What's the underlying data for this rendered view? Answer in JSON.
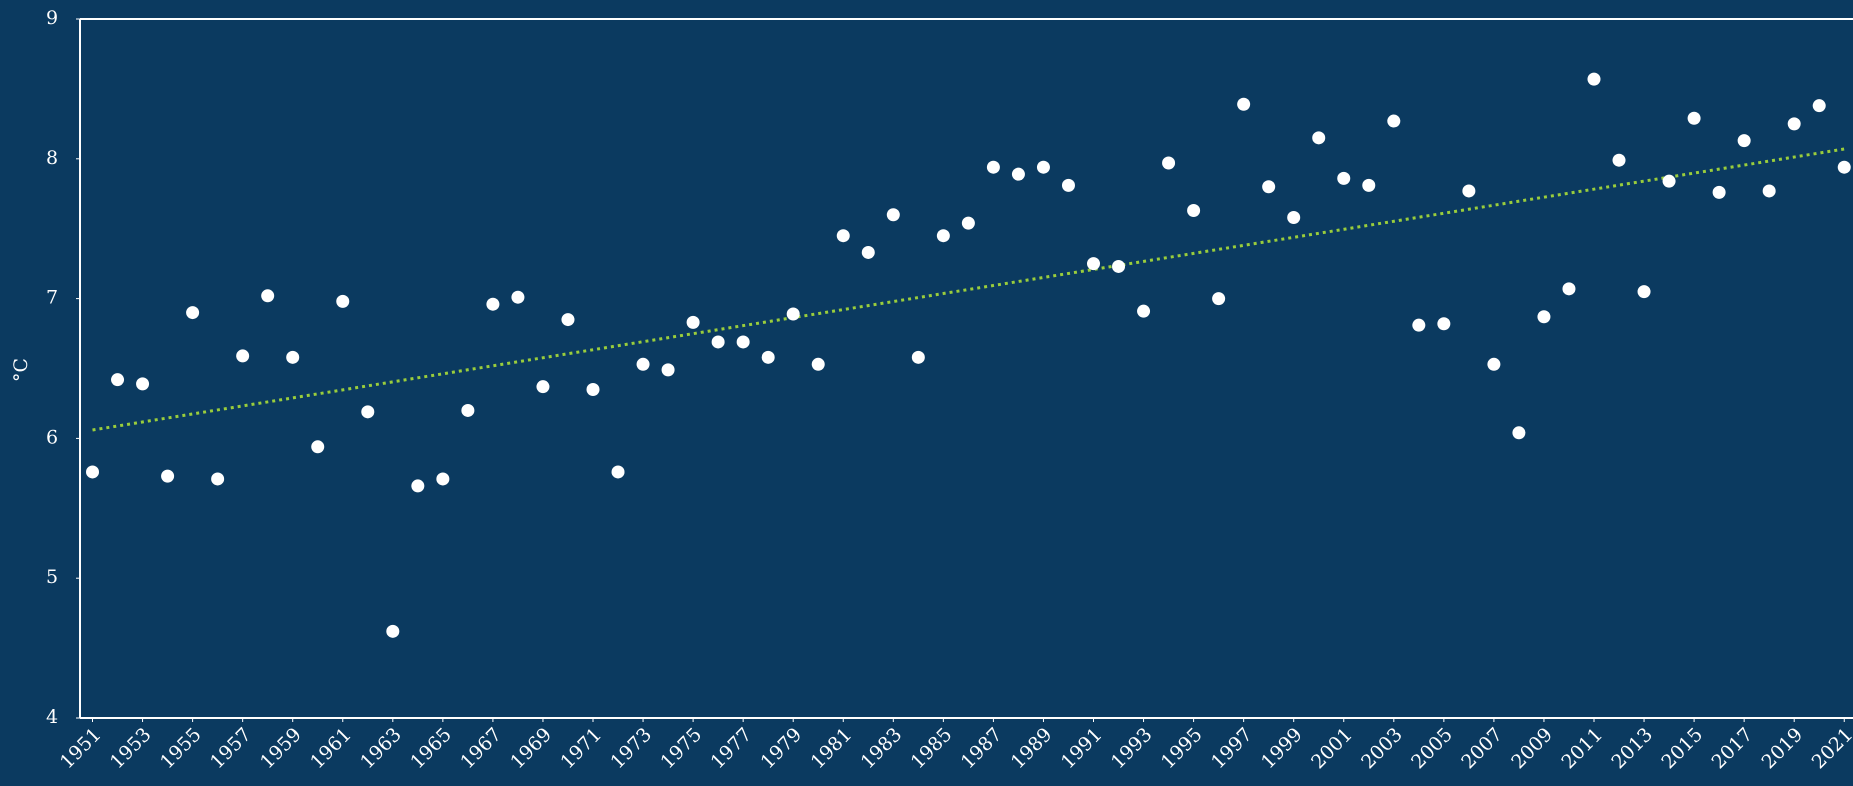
{
  "chart_data": {
    "type": "scatter",
    "ylabel": "°C",
    "x": [
      1951,
      1952,
      1953,
      1954,
      1955,
      1956,
      1957,
      1958,
      1959,
      1960,
      1961,
      1962,
      1963,
      1964,
      1965,
      1966,
      1967,
      1968,
      1969,
      1970,
      1971,
      1972,
      1973,
      1974,
      1975,
      1976,
      1977,
      1978,
      1979,
      1980,
      1981,
      1982,
      1983,
      1984,
      1985,
      1986,
      1987,
      1988,
      1989,
      1990,
      1991,
      1992,
      1993,
      1994,
      1995,
      1996,
      1997,
      1998,
      1999,
      2000,
      2001,
      2002,
      2003,
      2004,
      2005,
      2006,
      2007,
      2008,
      2009,
      2010,
      2011,
      2012,
      2013,
      2014,
      2015,
      2016,
      2017,
      2018,
      2019,
      2020,
      2021
    ],
    "series": [
      {
        "color": "#ffffff",
        "values": [
          5.76,
          6.42,
          6.39,
          5.73,
          6.9,
          5.71,
          6.59,
          7.02,
          6.58,
          5.94,
          6.98,
          6.19,
          4.62,
          5.66,
          5.71,
          6.2,
          6.96,
          7.01,
          6.37,
          6.85,
          6.35,
          5.76,
          6.53,
          6.49,
          6.83,
          6.69,
          6.69,
          6.58,
          6.89,
          6.53,
          7.45,
          7.33,
          7.6,
          6.58,
          7.45,
          7.54,
          7.94,
          7.89,
          7.94,
          7.81,
          7.25,
          7.23,
          6.91,
          7.97,
          7.63,
          7.0,
          8.39,
          7.8,
          7.58,
          8.15,
          7.86,
          7.81,
          8.27,
          6.81,
          6.82,
          7.77,
          6.53,
          6.04,
          6.87,
          7.07,
          8.57,
          7.99,
          7.05,
          7.84,
          8.29,
          7.76,
          8.13,
          7.77,
          8.25,
          8.38,
          7.94
        ]
      }
    ],
    "trend": {
      "x": [
        1951,
        2021
      ],
      "values": [
        6.06,
        8.07
      ],
      "color": "#9acd3c"
    },
    "xlim": [
      1950.5,
      2021.35
    ],
    "ylim": [
      4,
      9
    ],
    "xticks": [
      1951,
      1953,
      1955,
      1957,
      1959,
      1961,
      1963,
      1965,
      1967,
      1969,
      1971,
      1973,
      1975,
      1977,
      1979,
      1981,
      1983,
      1985,
      1987,
      1989,
      1991,
      1993,
      1995,
      1997,
      1999,
      2001,
      2003,
      2005,
      2007,
      2009,
      2011,
      2013,
      2015,
      2017,
      2019,
      2021
    ],
    "yticks": [
      4,
      5,
      6,
      7,
      8,
      9
    ]
  }
}
